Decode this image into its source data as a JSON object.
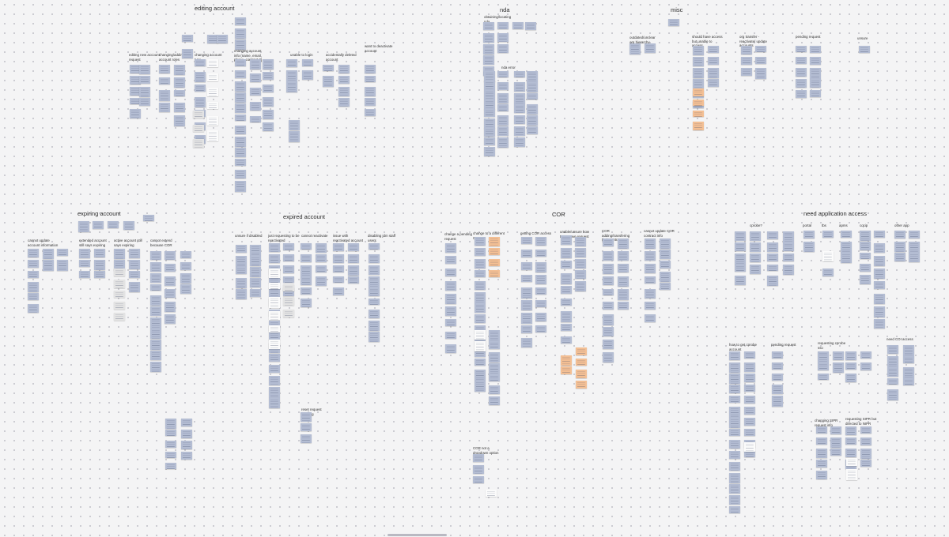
{
  "board": {
    "sections": [
      {
        "name": "editing-account",
        "title": "editing account",
        "labels": [
          "editing new account request",
          "changing/adding account roles",
          "changing account type",
          "changing account info (name, email, phone, contract #)",
          "unable to login",
          "accidentally deleted account",
          "want to deactivate account"
        ]
      },
      {
        "name": "nda",
        "title": "nda",
        "labels": [
          "obtaining/locating nda",
          "nda error"
        ]
      },
      {
        "name": "misc",
        "title": "misc",
        "labels": [
          "outdated/unclear org hierarchy",
          "should have access but unable to access",
          "org transfer - reactivate/ update accounts",
          "pending request",
          "unsure"
        ]
      },
      {
        "name": "expiring-account",
        "title": "expiring account",
        "labels": [
          "cannot update account information",
          "extended account still says expiring",
          "active account still says expiring",
          "cannot extend because COR"
        ]
      },
      {
        "name": "expired-account",
        "title": "expired account",
        "labels": [
          "unsure if disabled",
          "just requesting to be reactivated",
          "cannot reactivate",
          "issue with reactivated account",
          "disabling jdm staff users",
          "reset request pending"
        ]
      },
      {
        "name": "cor",
        "title": "COR",
        "labels": [
          "change a pending request",
          "change to a different COR",
          "getting COR access",
          "unable/unsure how to approve request",
          "COR adding/transfering their contractors",
          "cannot update COR contract info",
          "COR not a dropdown option"
        ]
      },
      {
        "name": "need-application-access",
        "title": "need application access",
        "labels": [
          "cprobe?",
          "portal",
          "tbs",
          "apms",
          "cqcip",
          "other app",
          "how to get cprobe account",
          "pending request",
          "requesting cprobe sso",
          "need COI access",
          "changing SIPR request info",
          "requesting SIPR but directed to NIPR"
        ]
      }
    ]
  }
}
